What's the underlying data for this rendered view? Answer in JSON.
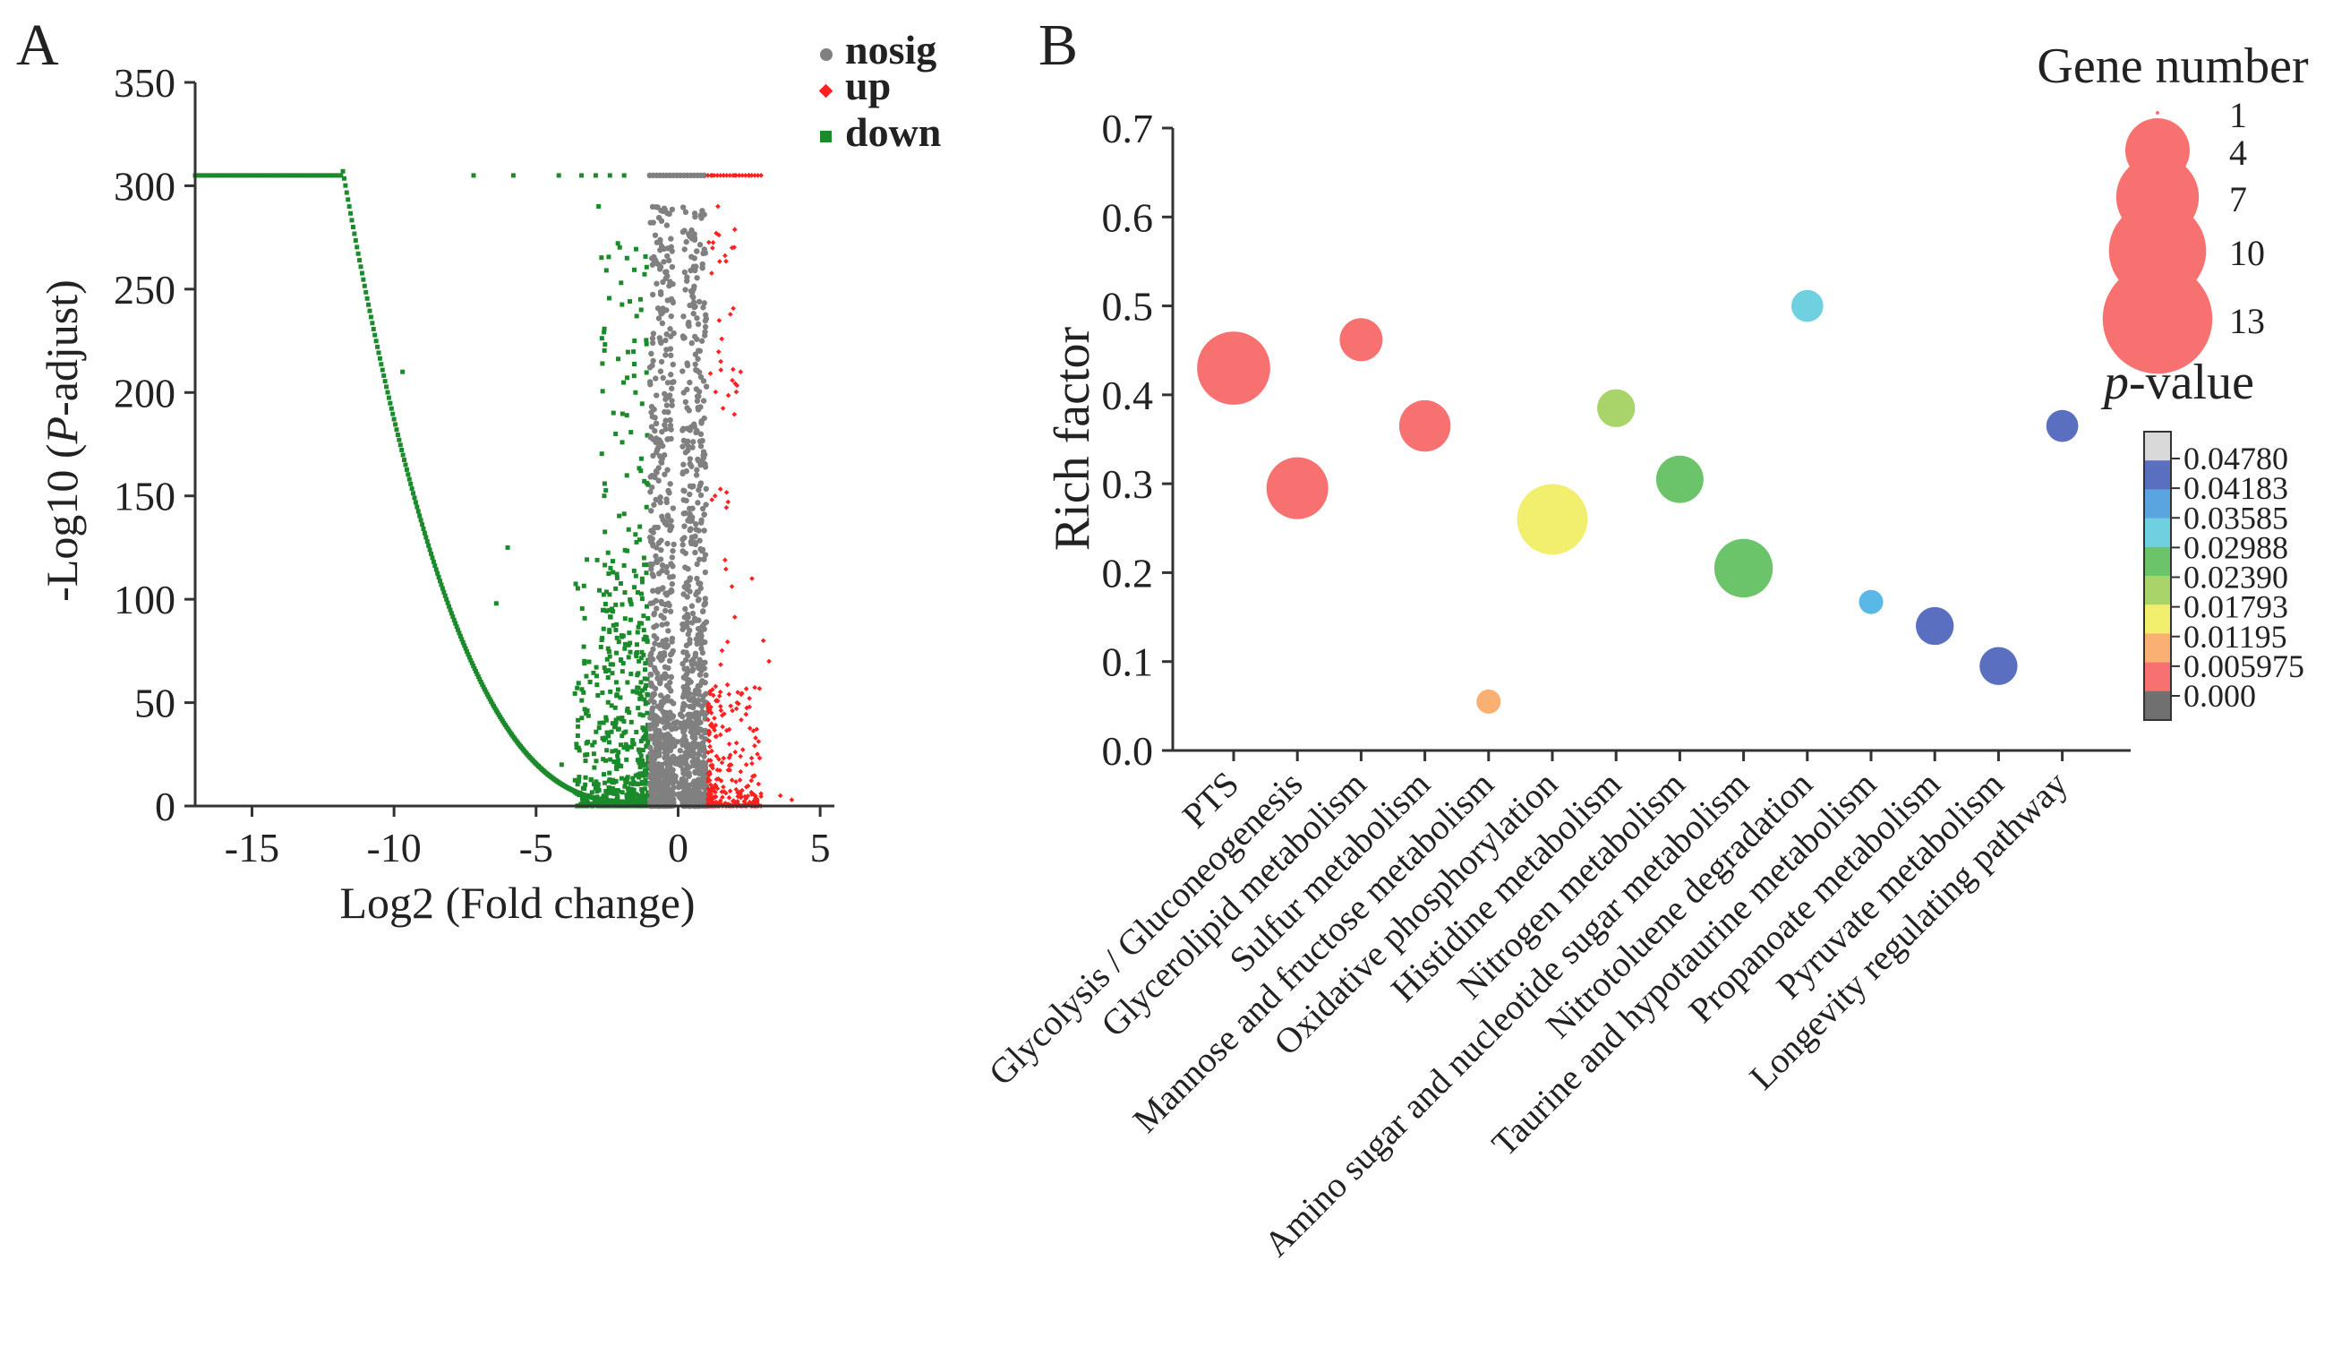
{
  "panels": {
    "a_label": "A",
    "b_label": "B"
  },
  "colors": {
    "nosig": "#808080",
    "up": "#ff2020",
    "down": "#1a8a2a",
    "bubble_low_p": "#f87171"
  },
  "chart_data": [
    {
      "id": "volcano",
      "type": "scatter",
      "title": "",
      "xlabel": "Log2 (Fold change)",
      "ylabel_prefix": "-Log10 (",
      "ylabel_italic": "P",
      "ylabel_suffix": "-adjust)",
      "xlim": [
        -17,
        5.5
      ],
      "ylim": [
        0,
        350
      ],
      "xticks": [
        -15,
        -10,
        -5,
        0,
        5
      ],
      "xtick_labels": [
        "-15",
        "-10",
        "-5",
        "0",
        "5"
      ],
      "yticks": [
        0,
        50,
        100,
        150,
        200,
        250,
        300,
        350
      ],
      "ytick_labels": [
        "0",
        "50",
        "100",
        "150",
        "200",
        "250",
        "300",
        "350"
      ],
      "legend_position": "top-right",
      "legend": [
        {
          "name": "nosig",
          "marker": "circle",
          "color": "#808080"
        },
        {
          "name": "up",
          "marker": "diamond",
          "color": "#ff2020"
        },
        {
          "name": "down",
          "marker": "square",
          "color": "#1a8a2a"
        }
      ],
      "capped_value": 305,
      "down_cap_x_range": [
        -17,
        -11.8
      ],
      "down_curve_x_range": [
        -11.8,
        -1.5
      ],
      "extra_points": {
        "down": [
          [
            -9.7,
            210
          ],
          [
            -6,
            125
          ],
          [
            -6.4,
            98
          ],
          [
            -7.2,
            305
          ],
          [
            -5.8,
            305
          ],
          [
            -4.2,
            305
          ],
          [
            -3.4,
            305
          ],
          [
            -2.9,
            305
          ],
          [
            -2.4,
            305
          ],
          [
            -1.9,
            305
          ],
          [
            -2.8,
            290
          ],
          [
            -1.8,
            265
          ],
          [
            -1.3,
            240
          ],
          [
            -2.2,
            180
          ],
          [
            -1.5,
            200
          ],
          [
            -2.6,
            150
          ],
          [
            -1.2,
            120
          ],
          [
            -3.1,
            60
          ],
          [
            -2.3,
            40
          ],
          [
            -4.1,
            20
          ]
        ],
        "up": [
          [
            1.2,
            305
          ],
          [
            1.6,
            305
          ],
          [
            2.0,
            305
          ],
          [
            2.5,
            305
          ],
          [
            1.4,
            290
          ],
          [
            1.9,
            270
          ],
          [
            1.5,
            215
          ],
          [
            2.2,
            210
          ],
          [
            1.3,
            150
          ],
          [
            2.6,
            110
          ],
          [
            3.0,
            80
          ],
          [
            3.2,
            70
          ],
          [
            2.1,
            55
          ],
          [
            1.8,
            30
          ],
          [
            2.4,
            20
          ],
          [
            3.6,
            5
          ],
          [
            4.0,
            3
          ]
        ]
      }
    },
    {
      "id": "kegg-bubble",
      "type": "scatter",
      "title": "",
      "xlabel": "",
      "ylabel": "Rich factor",
      "ylim": [
        0,
        0.7
      ],
      "yticks": [
        0.0,
        0.1,
        0.2,
        0.3,
        0.4,
        0.5,
        0.6,
        0.7
      ],
      "ytick_labels": [
        "0.0",
        "0.1",
        "0.2",
        "0.3",
        "0.4",
        "0.5",
        "0.6",
        "0.7"
      ],
      "categories": [
        "PTS",
        "Glycolysis / Gluconeogenesis",
        "Glycerolipid metabolism",
        "Sulfur metabolism",
        "Mannose and fructose metabolism",
        "Oxidative phosphorylation",
        "Histidine metabolism",
        "Nitrogen metabolism",
        "Amino sugar and nucleotide sugar metabolism",
        "Nitrotoluene degradation",
        "Taurine and hypotaurine metabolism",
        "Propanoate metabolism",
        "Pyruvate metabolism",
        "Longevity regulating pathway"
      ],
      "rich_factor": [
        0.43,
        0.295,
        0.462,
        0.365,
        0.055,
        0.26,
        0.385,
        0.305,
        0.205,
        0.5,
        0.167,
        0.14,
        0.095,
        0.365
      ],
      "gene_number": [
        13,
        9,
        4,
        6,
        1,
        12,
        3,
        5,
        8,
        2,
        1,
        3,
        3,
        2
      ],
      "colors": [
        "#f87171",
        "#f87171",
        "#f87171",
        "#f87171",
        "#fbb073",
        "#f2ee6e",
        "#a9d46a",
        "#6cc46a",
        "#6cc46a",
        "#6fd0df",
        "#5ab8e6",
        "#5a6fc0",
        "#5a6fc0",
        "#5a6fc0"
      ],
      "size_legend_title": "Gene number",
      "size_legend_values": [
        1,
        4,
        7,
        10,
        13
      ],
      "size_legend_labels": [
        "1",
        "4",
        "7",
        "10",
        "13"
      ],
      "size_legend_color": "#f87171",
      "color_legend_title_italic": "p",
      "color_legend_title_suffix": "-value",
      "color_legend_labels": [
        "0.04780",
        "0.04183",
        "0.03585",
        "0.02988",
        "0.02390",
        "0.01793",
        "0.01195",
        "0.005975",
        "0.000"
      ],
      "color_legend_colors": [
        "#d9d9d9",
        "#5a6fc0",
        "#5aa4e0",
        "#6fd0df",
        "#6cc46a",
        "#a9d46a",
        "#f2ee6e",
        "#fbb073",
        "#f87171",
        "#707070"
      ],
      "legend_position": "right"
    }
  ]
}
